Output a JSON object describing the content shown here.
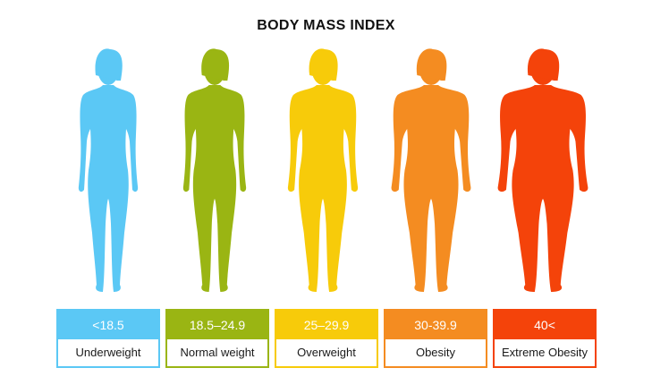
{
  "title": "BODY MASS INDEX",
  "categories": [
    {
      "range": "<18.5",
      "label": "Underweight",
      "color": "#5BC8F5",
      "body": "slim"
    },
    {
      "range": "18.5–24.9",
      "label": "Normal weight",
      "color": "#9AB513",
      "body": "normal"
    },
    {
      "range": "25–29.9",
      "label": "Overweight",
      "color": "#F7CB0A",
      "body": "over"
    },
    {
      "range": "30-39.9",
      "label": "Obesity",
      "color": "#F48C21",
      "body": "obese"
    },
    {
      "range": "40<",
      "label": "Extreme Obesity",
      "color": "#F4430A",
      "body": "extreme"
    }
  ]
}
